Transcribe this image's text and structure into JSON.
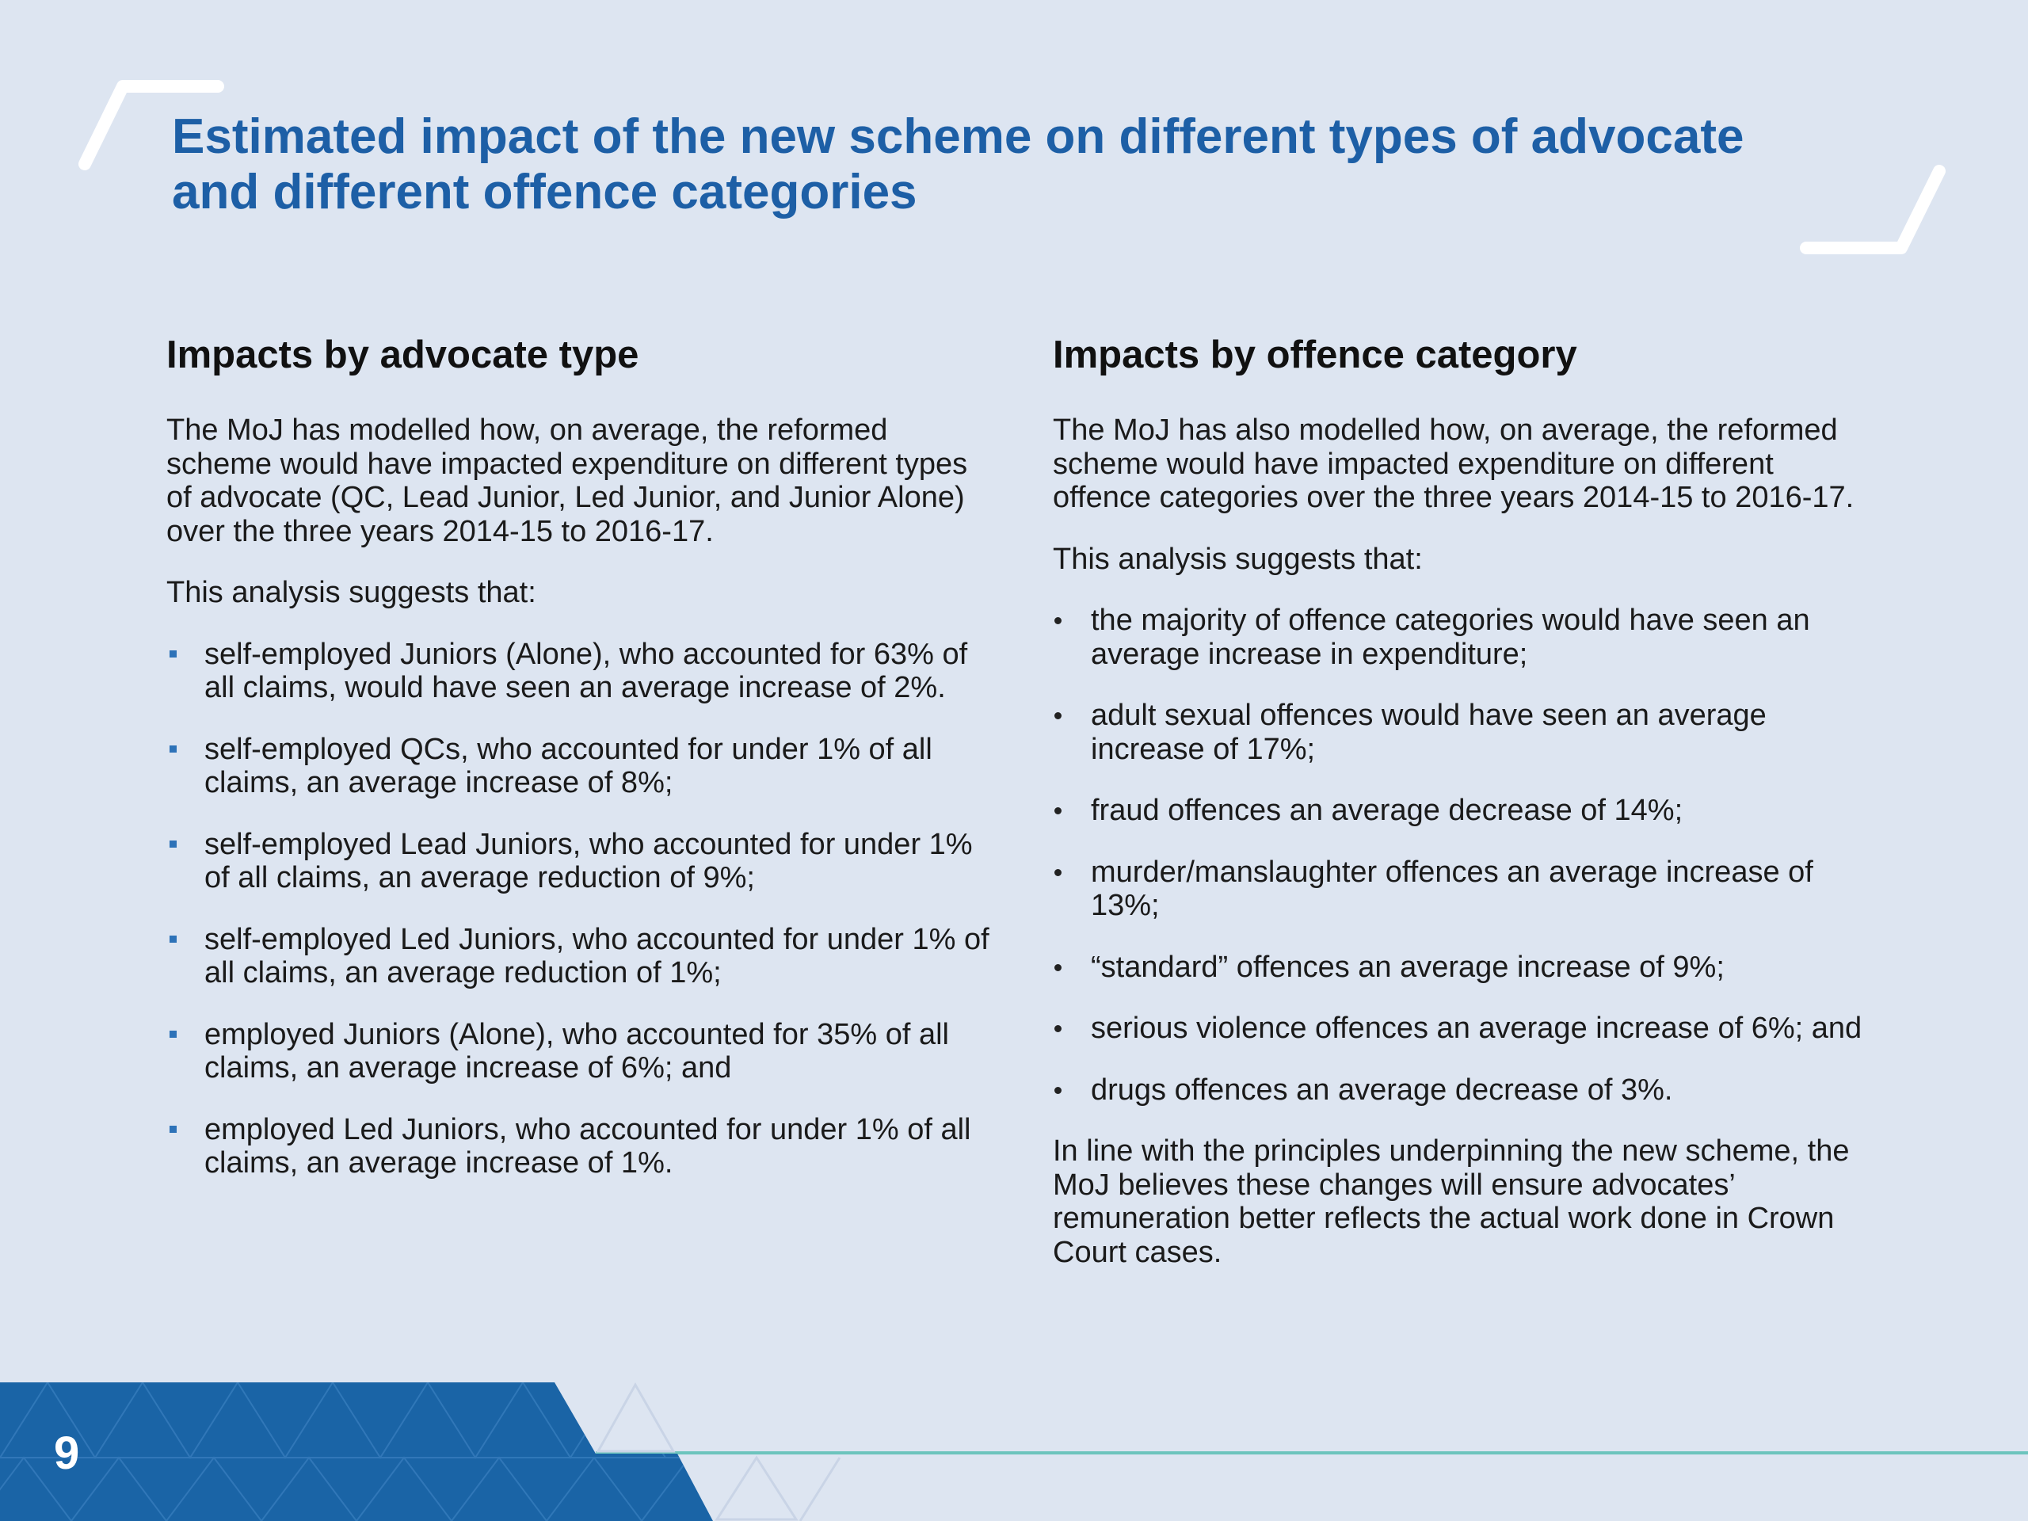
{
  "slide": {
    "title_lines": [
      "Estimated impact of the new scheme on different types of advocate",
      "and different offence categories"
    ],
    "page_number": "9"
  },
  "left": {
    "heading": "Impacts by advocate type",
    "intro_lines": [
      "The MoJ has modelled how, on average, the reformed",
      "scheme would have impacted expenditure on different types",
      "of advocate (QC, Lead Junior, Led Junior, and Junior Alone)",
      "over the three years 2014-15 to 2016-17."
    ],
    "suggests": "This analysis suggests that:",
    "bullets": [
      [
        "self-employed Juniors (Alone), who accounted for 63% of",
        "all claims, would have seen an average increase of 2%."
      ],
      [
        "self-employed QCs, who accounted for under 1% of all",
        "claims, an average increase of 8%;"
      ],
      [
        "self-employed Lead Juniors, who accounted for under 1%",
        "of all claims, an average reduction of 9%;"
      ],
      [
        "self-employed Led Juniors, who accounted for under 1% of",
        "all claims, an average reduction of 1%;"
      ],
      [
        "employed Juniors (Alone), who accounted for 35% of all",
        "claims, an average increase of 6%; and"
      ],
      [
        "employed Led Juniors, who accounted for under 1% of all",
        "claims, an average increase of 1%."
      ]
    ]
  },
  "right": {
    "heading": "Impacts by offence category",
    "intro_lines": [
      "The MoJ has also modelled how, on average, the reformed",
      "scheme would have impacted expenditure on different",
      "offence categories over the three years 2014-15 to 2016-17."
    ],
    "suggests": "This analysis suggests that:",
    "bullets": [
      [
        "the majority of offence categories would have seen an",
        "average increase in expenditure;"
      ],
      [
        "adult sexual offences would have seen an average",
        "increase of 17%;"
      ],
      [
        "fraud offences an average decrease of 14%;"
      ],
      [
        "murder/manslaughter offences an average increase of",
        "13%;"
      ],
      [
        "“standard” offences an average increase of 9%;"
      ],
      [
        "serious violence offences an average increase of 6%; and"
      ],
      [
        "drugs offences an average decrease of 3%."
      ]
    ],
    "conclusion_lines": [
      "In line with the principles underpinning the new scheme, the",
      "MoJ believes these changes will ensure advocates’",
      "remuneration better reflects the actual work done in Crown",
      "Court cases."
    ]
  },
  "colors": {
    "background": "#dde5f1",
    "title": "#1d5fa6",
    "footer_band": "#1a64a6",
    "footer_line": "#6cc4bd",
    "bullet_square": "#2d72b8"
  }
}
